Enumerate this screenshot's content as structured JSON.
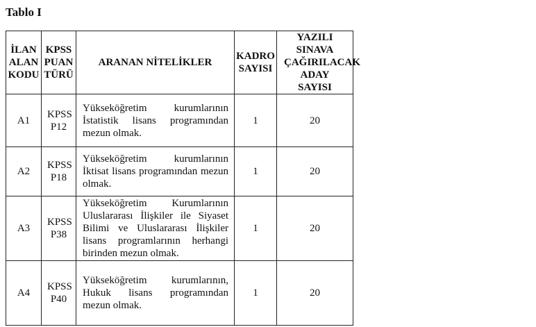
{
  "title": "Tablo I",
  "headers": [
    "İLAN ALAN KODU",
    "KPSS PUAN TÜRÜ",
    "ARANAN NİTELİKLER",
    "KADRO SAYISI",
    "YAZILI SINAVA ÇAĞIRILACAK ADAY SAYISI"
  ],
  "rows": [
    {
      "code": "A1",
      "kpss": "KPSS P12",
      "qualification": "Yükseköğretim kurumlarının İstatistik lisans programından mezun olmak.",
      "kadro": "1",
      "aday": "20"
    },
    {
      "code": "A2",
      "kpss": "KPSS P18",
      "qualification": "Yükseköğretim kurumlarının İktisat lisans programından mezun olmak.",
      "kadro": "1",
      "aday": "20"
    },
    {
      "code": "A3",
      "kpss": "KPSS P38",
      "qualification": "Yükseköğretim Kurumlarının Uluslararası İlişkiler ile Siyaset Bilimi ve Uluslararası İlişkiler lisans programlarının herhangi birinden mezun olmak.",
      "kadro": "1",
      "aday": "20"
    },
    {
      "code": "A4",
      "kpss": "KPSS P40",
      "qualification": "Yükseköğretim kurumlarının, Hukuk lisans programından mezun olmak.",
      "kadro": "1",
      "aday": "20"
    }
  ]
}
